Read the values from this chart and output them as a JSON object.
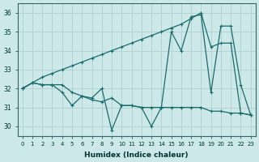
{
  "xlabel": "Humidex (Indice chaleur)",
  "background_color": "#cce8e8",
  "grid_color": "#aacccc",
  "line_color": "#1a6b6b",
  "xlim": [
    -0.5,
    23.5
  ],
  "ylim": [
    29.5,
    36.5
  ],
  "xticks": [
    0,
    1,
    2,
    3,
    4,
    5,
    6,
    7,
    8,
    9,
    10,
    11,
    12,
    13,
    14,
    15,
    16,
    17,
    18,
    19,
    20,
    21,
    22,
    23
  ],
  "yticks": [
    30,
    31,
    32,
    33,
    34,
    35,
    36
  ],
  "series1_x": [
    0,
    1,
    2,
    3,
    4,
    5,
    6,
    7,
    8,
    9,
    10,
    11,
    12,
    13,
    14,
    15,
    16,
    17,
    18,
    19,
    20,
    21,
    22,
    23
  ],
  "series1_y": [
    32.0,
    32.3,
    32.6,
    32.8,
    33.0,
    33.2,
    33.4,
    33.6,
    33.8,
    34.0,
    34.2,
    34.4,
    34.6,
    34.8,
    35.0,
    35.2,
    35.4,
    35.7,
    36.0,
    34.2,
    34.4,
    34.4,
    30.7,
    30.6
  ],
  "series2_x": [
    0,
    1,
    2,
    3,
    4,
    5,
    6,
    7,
    8,
    9,
    10,
    11,
    12,
    13,
    14,
    15,
    16,
    17,
    18,
    19,
    20,
    21,
    22,
    23
  ],
  "series2_y": [
    32.0,
    32.3,
    32.2,
    32.2,
    32.2,
    31.8,
    31.6,
    31.5,
    32.0,
    29.8,
    31.1,
    31.1,
    31.0,
    30.0,
    31.0,
    35.0,
    34.0,
    35.8,
    35.9,
    31.8,
    35.3,
    35.3,
    32.2,
    30.6
  ],
  "series3_x": [
    0,
    1,
    2,
    3,
    4,
    5,
    6,
    7,
    8,
    9,
    10,
    11,
    12,
    13,
    14,
    15,
    16,
    17,
    18,
    19,
    20,
    21,
    22,
    23
  ],
  "series3_y": [
    32.0,
    32.3,
    32.2,
    32.2,
    31.8,
    31.1,
    31.6,
    31.4,
    31.3,
    31.5,
    31.1,
    31.1,
    31.0,
    31.0,
    31.0,
    31.0,
    31.0,
    31.0,
    31.0,
    30.8,
    30.8,
    30.7,
    30.7,
    30.6
  ]
}
